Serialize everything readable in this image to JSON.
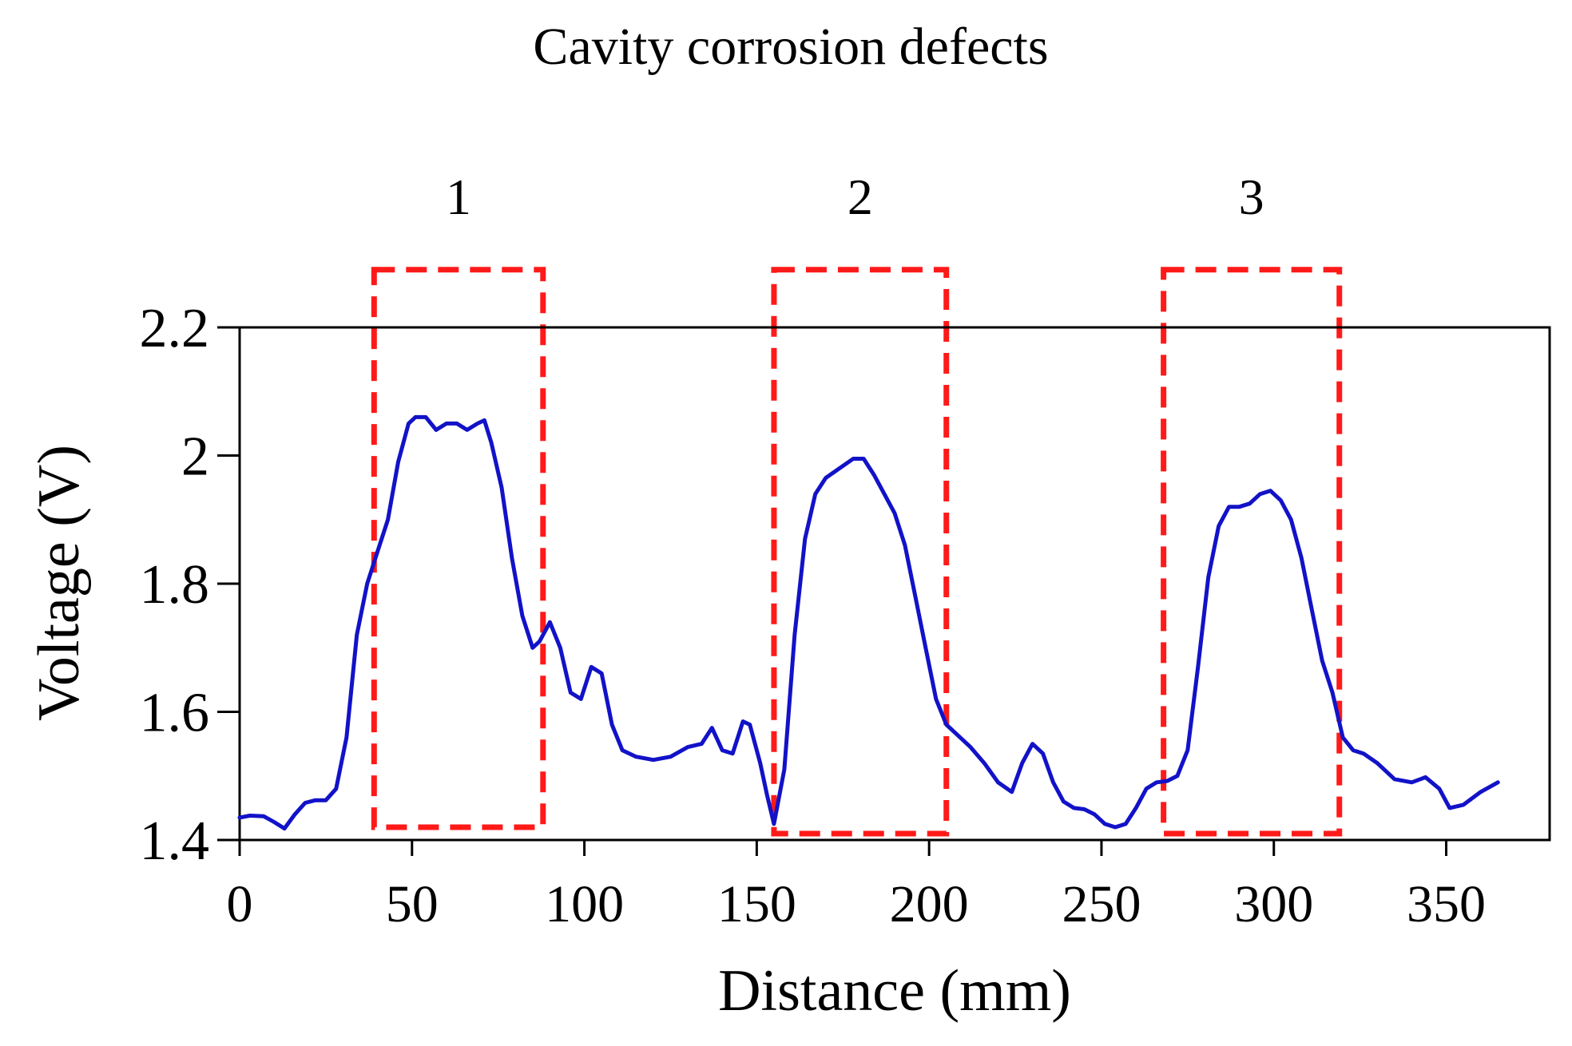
{
  "chart_data": {
    "type": "line",
    "title": "Cavity corrosion defects",
    "xlabel": "Distance (mm)",
    "ylabel": "Voltage (V)",
    "xlim": [
      0,
      380
    ],
    "ylim": [
      1.4,
      2.2
    ],
    "xticks": [
      0,
      50,
      100,
      150,
      200,
      250,
      300,
      350
    ],
    "xtick_labels": [
      "0",
      "50",
      "100",
      "150",
      "200",
      "250",
      "300",
      "350"
    ],
    "yticks": [
      1.4,
      1.6,
      1.8,
      2.0,
      2.2
    ],
    "ytick_labels": [
      "1.4",
      "1.6",
      "1.8",
      "2",
      "2.2"
    ],
    "grid": false,
    "series": [
      {
        "name": "Voltage",
        "color": "#1212c8",
        "x": [
          0,
          3,
          7,
          10,
          13,
          16,
          19,
          22,
          25,
          28,
          31,
          34,
          37,
          40,
          43,
          46,
          49,
          51,
          54,
          57,
          60,
          63,
          66,
          69,
          71,
          73,
          76,
          79,
          82,
          85,
          87,
          90,
          93,
          96,
          99,
          102,
          105,
          108,
          111,
          115,
          120,
          125,
          130,
          134,
          137,
          140,
          143,
          146,
          148,
          151,
          153,
          155,
          158,
          161,
          164,
          167,
          170,
          174,
          178,
          181,
          184,
          187,
          190,
          193,
          196,
          199,
          202,
          205,
          208,
          212,
          216,
          220,
          224,
          227,
          230,
          233,
          236,
          239,
          242,
          245,
          248,
          251,
          254,
          257,
          260,
          263,
          266,
          269,
          272,
          275,
          278,
          281,
          284,
          287,
          290,
          293,
          296,
          299,
          302,
          305,
          308,
          311,
          314,
          317,
          320,
          323,
          326,
          330,
          335,
          340,
          344,
          348,
          351,
          355,
          360,
          365
        ],
        "values": [
          1.435,
          1.438,
          1.437,
          1.428,
          1.418,
          1.44,
          1.458,
          1.462,
          1.462,
          1.48,
          1.56,
          1.72,
          1.8,
          1.85,
          1.9,
          1.99,
          2.05,
          2.06,
          2.06,
          2.04,
          2.05,
          2.05,
          2.04,
          2.05,
          2.055,
          2.02,
          1.95,
          1.84,
          1.75,
          1.7,
          1.71,
          1.74,
          1.7,
          1.63,
          1.62,
          1.67,
          1.66,
          1.58,
          1.54,
          1.53,
          1.525,
          1.53,
          1.545,
          1.55,
          1.575,
          1.54,
          1.535,
          1.585,
          1.58,
          1.52,
          1.47,
          1.425,
          1.51,
          1.72,
          1.87,
          1.94,
          1.965,
          1.98,
          1.995,
          1.995,
          1.97,
          1.94,
          1.91,
          1.86,
          1.78,
          1.7,
          1.62,
          1.58,
          1.565,
          1.545,
          1.52,
          1.49,
          1.475,
          1.52,
          1.55,
          1.535,
          1.49,
          1.46,
          1.45,
          1.448,
          1.44,
          1.425,
          1.42,
          1.425,
          1.45,
          1.48,
          1.49,
          1.492,
          1.5,
          1.54,
          1.67,
          1.81,
          1.89,
          1.92,
          1.92,
          1.925,
          1.94,
          1.945,
          1.93,
          1.9,
          1.84,
          1.76,
          1.68,
          1.63,
          1.56,
          1.54,
          1.535,
          1.52,
          1.495,
          1.49,
          1.498,
          1.48,
          1.45,
          1.455,
          1.475,
          1.49
        ]
      }
    ],
    "annotations": [
      {
        "label": "1",
        "x_range": [
          39,
          88
        ],
        "y_range": [
          1.42,
          2.29
        ],
        "color": "#ff1a1a",
        "style": "dashed"
      },
      {
        "label": "2",
        "x_range": [
          155,
          205
        ],
        "y_range": [
          1.41,
          2.29
        ],
        "color": "#ff1a1a",
        "style": "dashed"
      },
      {
        "label": "3",
        "x_range": [
          268,
          319
        ],
        "y_range": [
          1.41,
          2.29
        ],
        "color": "#ff1a1a",
        "style": "dashed"
      }
    ]
  }
}
